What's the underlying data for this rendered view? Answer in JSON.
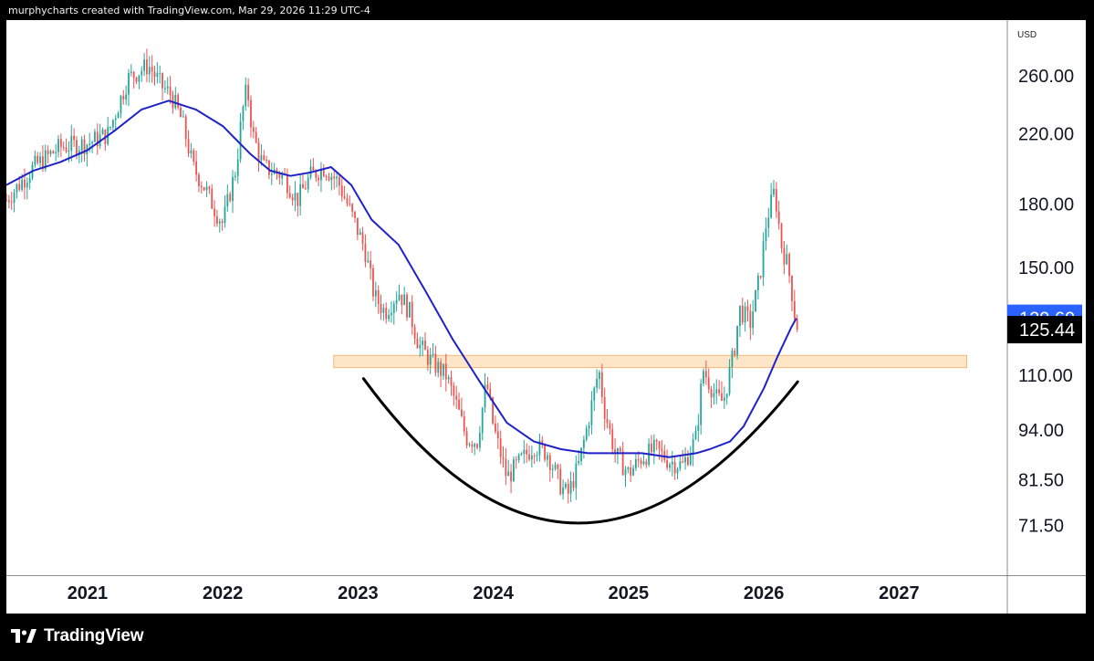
{
  "header": {
    "attribution": "murphycharts created with TradingView.com, Mar 29, 2026 11:29 UTC-4"
  },
  "footer": {
    "brand": "TradingView"
  },
  "chart_data": {
    "type": "candlestick",
    "currency": "USD",
    "y_scale": "log",
    "ylim": [
      62,
      305
    ],
    "xlim": [
      2020.4,
      2027.8
    ],
    "y_ticks": [
      "260.00",
      "220.00",
      "180.00",
      "150.00",
      "110.00",
      "94.00",
      "81.50",
      "71.50"
    ],
    "x_ticks": [
      "2021",
      "2022",
      "2023",
      "2024",
      "2025",
      "2026",
      "2027"
    ],
    "price_labels": {
      "moving_average": "129.60",
      "last_price": "125.44"
    },
    "colors": {
      "up": "#26a69a",
      "down": "#ef5350",
      "moving_average": "#1e22c8",
      "ma_label_bg": "#2962ff",
      "last_label_bg": "#000000",
      "zone_fill": "#fde6c8",
      "zone_stroke": "#f5b877",
      "arc": "#000000"
    },
    "annotations": {
      "support_zone": {
        "x_start": 2022.82,
        "x_end": 2027.5,
        "y_low": 112.5,
        "y_high": 116.5
      },
      "cup_arc": {
        "points": [
          [
            2023.04,
            109
          ],
          [
            2024.62,
            72
          ],
          [
            2026.25,
            108
          ]
        ]
      }
    },
    "price_path": [
      [
        2020.4,
        182
      ],
      [
        2020.6,
        200
      ],
      [
        2020.8,
        212
      ],
      [
        2021.0,
        214
      ],
      [
        2021.15,
        220
      ],
      [
        2021.3,
        258
      ],
      [
        2021.45,
        268
      ],
      [
        2021.55,
        252
      ],
      [
        2021.62,
        246
      ],
      [
        2021.7,
        228
      ],
      [
        2021.78,
        200
      ],
      [
        2021.87,
        188
      ],
      [
        2021.95,
        176
      ],
      [
        2022.0,
        170
      ],
      [
        2022.05,
        185
      ],
      [
        2022.1,
        200
      ],
      [
        2022.14,
        232
      ],
      [
        2022.18,
        252
      ],
      [
        2022.22,
        220
      ],
      [
        2022.3,
        200
      ],
      [
        2022.45,
        195
      ],
      [
        2022.55,
        182
      ],
      [
        2022.65,
        195
      ],
      [
        2022.75,
        200
      ],
      [
        2022.85,
        192
      ],
      [
        2022.95,
        175
      ],
      [
        2023.05,
        158
      ],
      [
        2023.12,
        138
      ],
      [
        2023.2,
        132
      ],
      [
        2023.3,
        140
      ],
      [
        2023.38,
        132
      ],
      [
        2023.45,
        120
      ],
      [
        2023.55,
        114
      ],
      [
        2023.65,
        110
      ],
      [
        2023.72,
        102
      ],
      [
        2023.8,
        92
      ],
      [
        2023.88,
        91
      ],
      [
        2023.95,
        108
      ],
      [
        2024.0,
        95
      ],
      [
        2024.1,
        82
      ],
      [
        2024.2,
        86
      ],
      [
        2024.3,
        90
      ],
      [
        2024.4,
        88
      ],
      [
        2024.5,
        80
      ],
      [
        2024.55,
        78
      ],
      [
        2024.63,
        85
      ],
      [
        2024.7,
        96
      ],
      [
        2024.78,
        112
      ],
      [
        2024.82,
        100
      ],
      [
        2024.9,
        88
      ],
      [
        2025.0,
        83
      ],
      [
        2025.1,
        87
      ],
      [
        2025.2,
        89
      ],
      [
        2025.3,
        86
      ],
      [
        2025.4,
        85
      ],
      [
        2025.5,
        92
      ],
      [
        2025.55,
        112
      ],
      [
        2025.65,
        103
      ],
      [
        2025.7,
        102
      ],
      [
        2025.78,
        118
      ],
      [
        2025.82,
        133
      ],
      [
        2025.9,
        128
      ],
      [
        2025.97,
        146
      ],
      [
        2026.02,
        172
      ],
      [
        2026.08,
        187
      ],
      [
        2026.13,
        160
      ],
      [
        2026.18,
        150
      ],
      [
        2026.22,
        135
      ],
      [
        2026.24,
        125.44
      ]
    ],
    "moving_average": [
      [
        2020.4,
        190
      ],
      [
        2020.6,
        198
      ],
      [
        2020.8,
        203
      ],
      [
        2021.0,
        210
      ],
      [
        2021.2,
        222
      ],
      [
        2021.4,
        236
      ],
      [
        2021.6,
        242
      ],
      [
        2021.8,
        236
      ],
      [
        2022.0,
        225
      ],
      [
        2022.2,
        208
      ],
      [
        2022.35,
        198
      ],
      [
        2022.5,
        195
      ],
      [
        2022.65,
        197
      ],
      [
        2022.8,
        200
      ],
      [
        2022.95,
        190
      ],
      [
        2023.1,
        172
      ],
      [
        2023.3,
        160
      ],
      [
        2023.5,
        140
      ],
      [
        2023.7,
        122
      ],
      [
        2023.9,
        108
      ],
      [
        2024.1,
        96
      ],
      [
        2024.3,
        91
      ],
      [
        2024.5,
        89
      ],
      [
        2024.7,
        88
      ],
      [
        2024.9,
        88
      ],
      [
        2025.1,
        88
      ],
      [
        2025.3,
        87
      ],
      [
        2025.5,
        88
      ],
      [
        2025.6,
        89
      ],
      [
        2025.75,
        91
      ],
      [
        2025.85,
        95
      ],
      [
        2026.0,
        106
      ],
      [
        2026.1,
        116
      ],
      [
        2026.2,
        126
      ],
      [
        2026.24,
        129.6
      ]
    ]
  }
}
